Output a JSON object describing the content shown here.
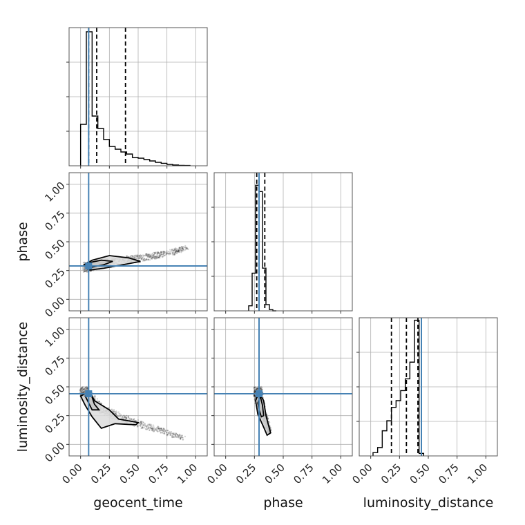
{
  "chart_data": {
    "type": "corner",
    "parameters": [
      "geocent_time",
      "phase",
      "luminosity_distance"
    ],
    "axis_labels": {
      "x": [
        "geocent_time",
        "phase",
        "luminosity_distance"
      ],
      "y": [
        "phase",
        "luminosity_distance"
      ]
    },
    "range": [
      -0.1,
      1.1
    ],
    "ticks": [
      0.0,
      0.25,
      0.5,
      0.75,
      1.0
    ],
    "tick_labels": [
      "0.00",
      "0.25",
      "0.50",
      "0.75",
      "1.00"
    ],
    "truths": {
      "geocent_time": 0.07,
      "phase": 0.29,
      "luminosity_distance": 0.44
    },
    "colors": {
      "truth": "#4682b4",
      "hist": "#000000",
      "grid": "#b0b0b0",
      "frame": "#555555",
      "samples": "#000000",
      "contour_fill": "#dcdcdc"
    },
    "histograms": [
      {
        "param": "geocent_time",
        "bin_edges": [
          0.0,
          0.05,
          0.1,
          0.15,
          0.2,
          0.25,
          0.3,
          0.35,
          0.4,
          0.45,
          0.5,
          0.55,
          0.6,
          0.65,
          0.7,
          0.75,
          0.8,
          0.85,
          0.9,
          0.95
        ],
        "counts": [
          0.3,
          0.97,
          0.36,
          0.27,
          0.19,
          0.14,
          0.12,
          0.1,
          0.085,
          0.06,
          0.055,
          0.045,
          0.035,
          0.025,
          0.018,
          0.01,
          0.006,
          0.003,
          0.002
        ],
        "quantiles": [
          0.07,
          0.14,
          0.39
        ],
        "ylim": [
          0,
          1.0
        ]
      },
      {
        "param": "phase",
        "bin_edges": [
          0.2,
          0.23,
          0.26,
          0.29,
          0.32,
          0.35,
          0.38,
          0.41,
          0.44
        ],
        "counts": [
          0.04,
          0.3,
          1.0,
          0.95,
          0.34,
          0.05,
          0.01,
          0.0
        ],
        "quantiles": [
          0.27,
          0.29,
          0.34
        ],
        "ylim": [
          0,
          1.1
        ]
      },
      {
        "param": "luminosity_distance",
        "bin_edges": [
          0.02,
          0.06,
          0.1,
          0.14,
          0.18,
          0.22,
          0.26,
          0.3,
          0.34,
          0.38,
          0.42,
          0.46
        ],
        "counts": [
          0.04,
          0.1,
          0.3,
          0.42,
          0.58,
          0.66,
          0.78,
          0.92,
          1.12,
          1.62,
          0.03
        ],
        "quantiles": [
          0.18,
          0.31,
          0.41
        ],
        "ylim": [
          0,
          1.65
        ]
      }
    ],
    "panels_2d": [
      {
        "x_param": "geocent_time",
        "y_param": "phase",
        "truth": [
          0.07,
          0.29
        ],
        "sample_trend": [
          [
            0.05,
            0.28
          ],
          [
            0.2,
            0.31
          ],
          [
            0.4,
            0.34
          ],
          [
            0.6,
            0.37
          ],
          [
            0.8,
            0.41
          ],
          [
            0.92,
            0.45
          ]
        ],
        "contour_outer": [
          [
            0.03,
            0.3
          ],
          [
            0.08,
            0.255
          ],
          [
            0.2,
            0.27
          ],
          [
            0.42,
            0.31
          ],
          [
            0.52,
            0.33
          ],
          [
            0.42,
            0.36
          ],
          [
            0.25,
            0.38
          ],
          [
            0.1,
            0.34
          ],
          [
            0.03,
            0.3
          ]
        ],
        "contour_inner": [
          [
            0.06,
            0.3
          ],
          [
            0.1,
            0.28
          ],
          [
            0.2,
            0.3
          ],
          [
            0.28,
            0.33
          ],
          [
            0.18,
            0.34
          ],
          [
            0.08,
            0.32
          ],
          [
            0.06,
            0.3
          ]
        ]
      },
      {
        "x_param": "geocent_time",
        "y_param": "luminosity_distance",
        "truth": [
          0.07,
          0.44
        ],
        "sample_trend": [
          [
            0.03,
            0.46
          ],
          [
            0.12,
            0.35
          ],
          [
            0.3,
            0.25
          ],
          [
            0.5,
            0.18
          ],
          [
            0.7,
            0.12
          ],
          [
            0.9,
            0.05
          ]
        ],
        "contour_outer": [
          [
            0.0,
            0.42
          ],
          [
            0.08,
            0.46
          ],
          [
            0.12,
            0.38
          ],
          [
            0.25,
            0.3
          ],
          [
            0.33,
            0.22
          ],
          [
            0.5,
            0.19
          ],
          [
            0.48,
            0.17
          ],
          [
            0.3,
            0.18
          ],
          [
            0.18,
            0.14
          ],
          [
            0.1,
            0.24
          ],
          [
            0.04,
            0.34
          ],
          [
            0.0,
            0.42
          ]
        ],
        "contour_inner": [
          [
            0.04,
            0.42
          ],
          [
            0.09,
            0.44
          ],
          [
            0.12,
            0.35
          ],
          [
            0.16,
            0.3
          ],
          [
            0.1,
            0.3
          ],
          [
            0.06,
            0.38
          ],
          [
            0.04,
            0.42
          ]
        ]
      },
      {
        "x_param": "phase",
        "y_param": "luminosity_distance",
        "truth": [
          0.29,
          0.44
        ],
        "sample_trend": [
          [
            0.28,
            0.46
          ],
          [
            0.3,
            0.35
          ],
          [
            0.33,
            0.25
          ],
          [
            0.36,
            0.17
          ],
          [
            0.38,
            0.1
          ]
        ],
        "contour_outer": [
          [
            0.26,
            0.38
          ],
          [
            0.29,
            0.45
          ],
          [
            0.33,
            0.38
          ],
          [
            0.35,
            0.25
          ],
          [
            0.39,
            0.1
          ],
          [
            0.36,
            0.08
          ],
          [
            0.33,
            0.15
          ],
          [
            0.28,
            0.26
          ],
          [
            0.26,
            0.38
          ]
        ],
        "contour_inner": [
          [
            0.28,
            0.36
          ],
          [
            0.3,
            0.42
          ],
          [
            0.32,
            0.34
          ],
          [
            0.33,
            0.25
          ],
          [
            0.31,
            0.24
          ],
          [
            0.29,
            0.3
          ],
          [
            0.28,
            0.36
          ]
        ]
      }
    ]
  }
}
